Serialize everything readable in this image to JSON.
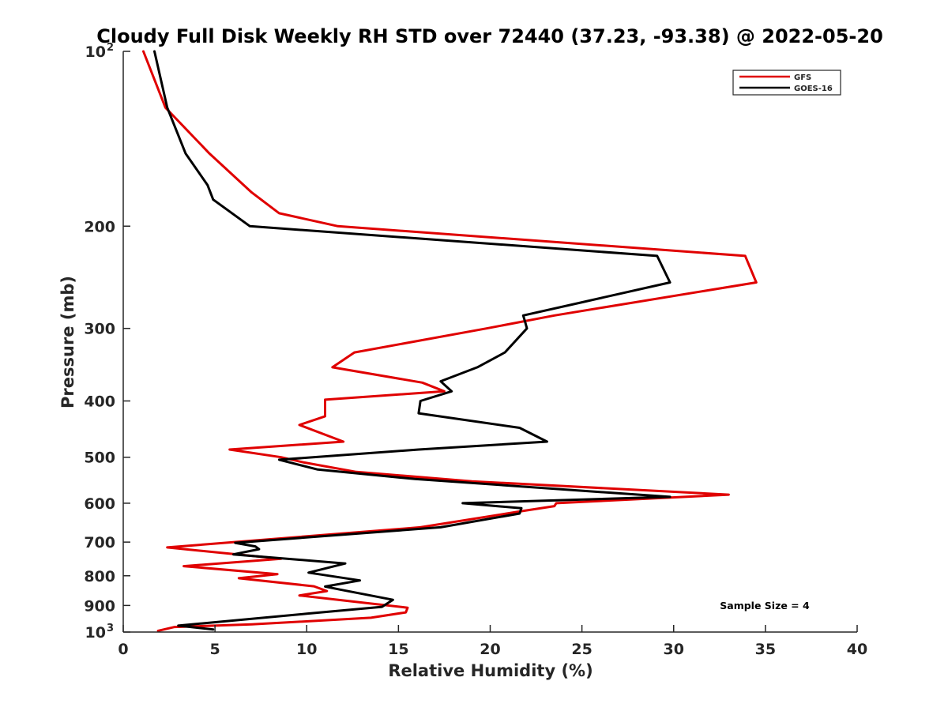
{
  "chart_data": {
    "type": "line",
    "title": "Cloudy Full Disk Weekly RH STD over 72440 (37.23, -93.38) @ 2022-05-20",
    "xlabel": "Relative Humidity (%)",
    "ylabel": "Pressure (mb)",
    "xlim": [
      0,
      40
    ],
    "ylim": [
      100,
      1000
    ],
    "y_scale": "log",
    "y_reversed": true,
    "grid": false,
    "legend_position": "top-right",
    "x_ticks": [
      {
        "value": 0,
        "label": "0"
      },
      {
        "value": 5,
        "label": "5"
      },
      {
        "value": 10,
        "label": "10"
      },
      {
        "value": 15,
        "label": "15"
      },
      {
        "value": 20,
        "label": "20"
      },
      {
        "value": 25,
        "label": "25"
      },
      {
        "value": 30,
        "label": "30"
      },
      {
        "value": 35,
        "label": "35"
      },
      {
        "value": 40,
        "label": "40"
      }
    ],
    "y_ticks": [
      {
        "value": 100,
        "label": "10",
        "sup": "2"
      },
      {
        "value": 200,
        "label": "200",
        "sup": ""
      },
      {
        "value": 300,
        "label": "300",
        "sup": ""
      },
      {
        "value": 400,
        "label": "400",
        "sup": ""
      },
      {
        "value": 500,
        "label": "500",
        "sup": ""
      },
      {
        "value": 600,
        "label": "600",
        "sup": ""
      },
      {
        "value": 700,
        "label": "700",
        "sup": ""
      },
      {
        "value": 800,
        "label": "800",
        "sup": ""
      },
      {
        "value": 900,
        "label": "900",
        "sup": ""
      },
      {
        "value": 1000,
        "label": "10",
        "sup": "3"
      }
    ],
    "annotation": "Sample Size = 4",
    "series": [
      {
        "name": "GFS",
        "color": "#e00000",
        "points": [
          [
            1.1,
            100
          ],
          [
            2.3,
            125
          ],
          [
            4.7,
            150
          ],
          [
            7.0,
            175
          ],
          [
            8.5,
            190
          ],
          [
            11.7,
            200
          ],
          [
            33.9,
            225
          ],
          [
            34.5,
            250
          ],
          [
            23.5,
            285
          ],
          [
            19.8,
            300
          ],
          [
            12.6,
            330
          ],
          [
            11.4,
            350
          ],
          [
            16.3,
            372
          ],
          [
            17.5,
            385
          ],
          [
            11.0,
            398
          ],
          [
            11.0,
            425
          ],
          [
            9.6,
            440
          ],
          [
            12.0,
            470
          ],
          [
            5.8,
            485
          ],
          [
            8.6,
            500
          ],
          [
            9.8,
            510
          ],
          [
            12.7,
            530
          ],
          [
            19.0,
            550
          ],
          [
            33.0,
            580
          ],
          [
            23.6,
            600
          ],
          [
            23.5,
            607
          ],
          [
            21.6,
            620
          ],
          [
            16.2,
            660
          ],
          [
            2.4,
            715
          ],
          [
            8.6,
            748
          ],
          [
            3.3,
            770
          ],
          [
            8.4,
            795
          ],
          [
            6.3,
            808
          ],
          [
            10.4,
            834
          ],
          [
            11.1,
            850
          ],
          [
            9.6,
            865
          ],
          [
            15.5,
            908
          ],
          [
            15.4,
            925
          ],
          [
            13.5,
            945
          ],
          [
            7.0,
            970
          ],
          [
            2.8,
            980
          ],
          [
            1.9,
            995
          ]
        ]
      },
      {
        "name": "GOES-16",
        "color": "#000000",
        "points": [
          [
            1.7,
            100
          ],
          [
            2.4,
            125
          ],
          [
            3.4,
            150
          ],
          [
            4.6,
            170
          ],
          [
            4.9,
            180
          ],
          [
            6.9,
            200
          ],
          [
            29.1,
            225
          ],
          [
            29.8,
            250
          ],
          [
            25.1,
            270
          ],
          [
            21.8,
            285
          ],
          [
            21.9,
            292
          ],
          [
            22.0,
            300
          ],
          [
            20.8,
            330
          ],
          [
            19.3,
            350
          ],
          [
            17.3,
            370
          ],
          [
            17.9,
            385
          ],
          [
            16.2,
            400
          ],
          [
            16.1,
            420
          ],
          [
            21.6,
            445
          ],
          [
            23.1,
            470
          ],
          [
            16.1,
            485
          ],
          [
            8.5,
            505
          ],
          [
            10.6,
            525
          ],
          [
            15.9,
            545
          ],
          [
            29.8,
            585
          ],
          [
            18.5,
            600
          ],
          [
            21.7,
            612
          ],
          [
            21.6,
            625
          ],
          [
            17.3,
            660
          ],
          [
            6.1,
            702
          ],
          [
            7.2,
            712
          ],
          [
            7.4,
            720
          ],
          [
            6.0,
            735
          ],
          [
            12.1,
            762
          ],
          [
            10.1,
            790
          ],
          [
            12.9,
            815
          ],
          [
            11.0,
            835
          ],
          [
            11.8,
            845
          ],
          [
            14.7,
            880
          ],
          [
            14.1,
            905
          ],
          [
            10.0,
            930
          ],
          [
            3.0,
            975
          ],
          [
            4.9,
            990
          ]
        ]
      }
    ]
  }
}
